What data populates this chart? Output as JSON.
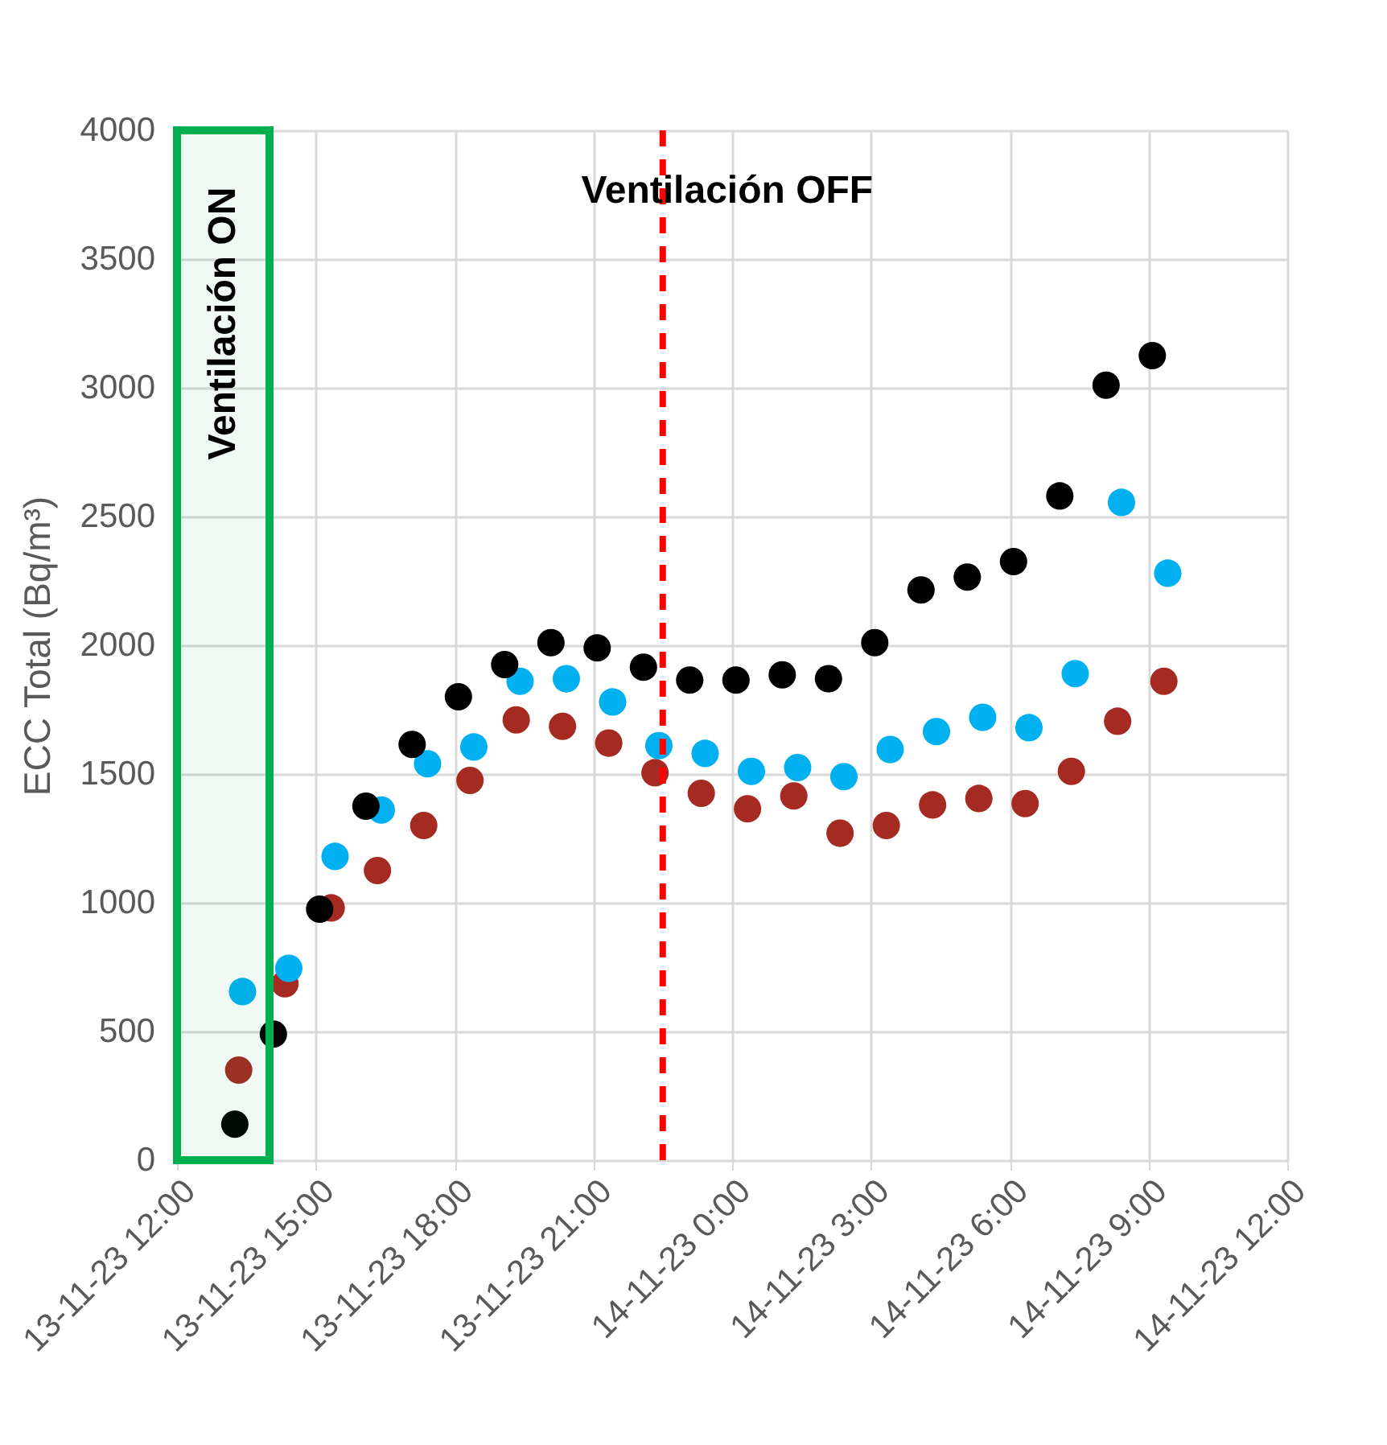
{
  "chart_data": {
    "type": "scatter",
    "ylabel": "ECC Total (Bq/m³)",
    "xlim": [
      "--11-13T12:00",
      "--11-14T12:00"
    ],
    "xticks": [
      {
        "value": "--11-13T12:00",
        "label": "13-11-23 12:00"
      },
      {
        "value": "--11-13T15:00",
        "label": "13-11-23 15:00"
      },
      {
        "value": "--11-13T18:00",
        "label": "13-11-23 18:00"
      },
      {
        "value": "--11-13T21:00",
        "label": "13-11-23 21:00"
      },
      {
        "value": "--11-14T00:00",
        "label": "14-11-23 0:00"
      },
      {
        "value": "--11-14T03:00",
        "label": "14-11-23 3:00"
      },
      {
        "value": "--11-14T06:00",
        "label": "14-11-23 6:00"
      },
      {
        "value": "--11-14T09:00",
        "label": "14-11-23 9:00"
      },
      {
        "value": "--11-14T12:00",
        "label": "14-11-23 12:00"
      }
    ],
    "ylim": [
      0,
      4000
    ],
    "yticks": [
      0,
      500,
      1000,
      1500,
      2000,
      2500,
      3000,
      3500,
      4000
    ],
    "grid": true,
    "marker": "circle",
    "series": [
      {
        "color": "#a52a22",
        "x": [
          "--11-13T13:20",
          "--11-13T14:20",
          "--11-13T15:20",
          "--11-13T16:20",
          "--11-13T17:20",
          "--11-13T18:20",
          "--11-13T19:20",
          "--11-13T20:20",
          "--11-13T21:20",
          "--11-13T22:20",
          "--11-13T23:20",
          "--11-14T00:20",
          "--11-14T01:20",
          "--11-14T02:20",
          "--11-14T03:20",
          "--11-14T04:20",
          "--11-14T05:20",
          "--11-14T06:20",
          "--11-14T07:20",
          "--11-14T08:20",
          "--11-14T09:20"
        ],
        "values": [
          350,
          685,
          980,
          1125,
          1300,
          1475,
          1710,
          1685,
          1620,
          1505,
          1425,
          1365,
          1415,
          1270,
          1300,
          1380,
          1405,
          1385,
          1510,
          1705,
          1860
        ]
      },
      {
        "color": "#00b0f0",
        "x": [
          "--11-13T13:25",
          "--11-13T14:25",
          "--11-13T15:25",
          "--11-13T16:25",
          "--11-13T17:25",
          "--11-13T18:25",
          "--11-13T19:25",
          "--11-13T20:25",
          "--11-13T21:25",
          "--11-13T22:25",
          "--11-13T23:25",
          "--11-14T00:25",
          "--11-14T01:25",
          "--11-14T02:25",
          "--11-14T03:25",
          "--11-14T04:25",
          "--11-14T05:25",
          "--11-14T06:25",
          "--11-14T07:25",
          "--11-14T08:25",
          "--11-14T09:25"
        ],
        "values": [
          655,
          745,
          1180,
          1360,
          1540,
          1605,
          1860,
          1870,
          1780,
          1610,
          1580,
          1510,
          1525,
          1490,
          1595,
          1665,
          1720,
          1680,
          1890,
          2555,
          2280
        ]
      },
      {
        "color": "#000000",
        "x": [
          "--11-13T13:15",
          "--11-13T14:05",
          "--11-13T15:05",
          "--11-13T16:05",
          "--11-13T17:05",
          "--11-13T18:05",
          "--11-13T19:05",
          "--11-13T20:05",
          "--11-13T21:05",
          "--11-13T22:05",
          "--11-13T23:05",
          "--11-14T00:05",
          "--11-14T01:05",
          "--11-14T02:05",
          "--11-14T03:05",
          "--11-14T04:05",
          "--11-14T05:05",
          "--11-14T06:05",
          "--11-14T07:05",
          "--11-14T08:05",
          "--11-14T09:05"
        ],
        "values": [
          140,
          490,
          975,
          1375,
          1615,
          1800,
          1925,
          2010,
          1990,
          1915,
          1865,
          1865,
          1885,
          1870,
          2010,
          2215,
          2265,
          2325,
          2580,
          3010,
          3125
        ]
      }
    ],
    "ref_lines": [
      {
        "axis": "x",
        "value": "--11-13T22:30",
        "label": "Ventilación OFF",
        "color": "#ff0000",
        "line_style": "dashed"
      }
    ],
    "bands": [
      {
        "axis": "x",
        "from": "--11-13T12:00",
        "to": "--11-13T14:00",
        "label": "Ventilación ON",
        "color": "#00b050"
      }
    ]
  }
}
